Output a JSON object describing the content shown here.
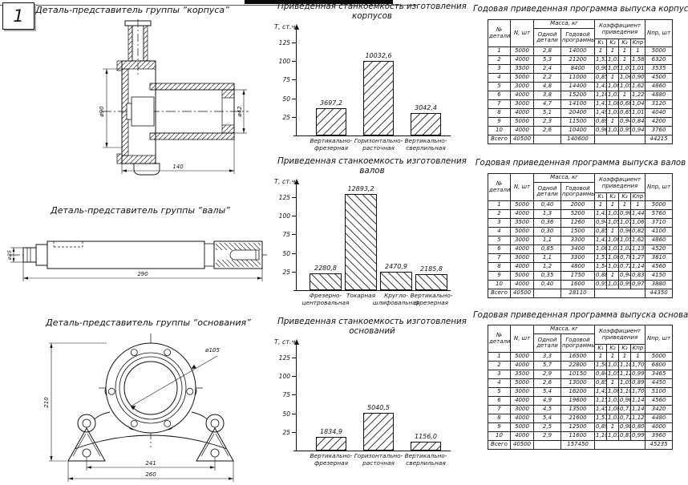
{
  "page": {
    "number": "1"
  },
  "drawings": [
    {
      "title": "Деталь-представитель группы “корпуса”",
      "dim_left": "ø90",
      "dim_right": "ø42",
      "dim_bottom": "140"
    },
    {
      "title": "Деталь-представитель группы “валы”",
      "dim_left": "ø25",
      "dim_bottom": "290"
    },
    {
      "title": "Деталь-представитель группы “основания”",
      "dim_diameter": "ø105",
      "dim_left": "210",
      "dim_bottom_inner": "241",
      "dim_bottom_outer": "260"
    }
  ],
  "chart_data": [
    {
      "type": "bar",
      "title_line1": "Приведенная станкоемкость изготовления",
      "title_line2": "корпусов",
      "ylabel": "Т, ст.ч.",
      "yticks": [
        25,
        50,
        75,
        100,
        125
      ],
      "ylim": [
        0,
        140
      ],
      "value_scale": 100,
      "hatch": "fwd",
      "grid": false,
      "categories": [
        [
          "Вертикально-",
          "фрезерная"
        ],
        [
          "Горизонтально-",
          "расточная"
        ],
        [
          "Вертикально-",
          "сверлильная"
        ]
      ],
      "values": [
        3697.2,
        10032.6,
        3042.4
      ],
      "labels": [
        "3697,2",
        "10032,6",
        "3042,4"
      ]
    },
    {
      "type": "bar",
      "title_line1": "Приведенная станкоемкость изготовления",
      "title_line2": "валов",
      "ylabel": "Т, ст.ч.",
      "yticks": [
        25,
        50,
        75,
        100,
        125
      ],
      "ylim": [
        0,
        140
      ],
      "value_scale": 100,
      "hatch": "back",
      "grid": false,
      "categories": [
        [
          "Фрезерно-",
          "центровальная"
        ],
        [
          "Токарная",
          ""
        ],
        [
          "Кругло-",
          "шлифовальная"
        ],
        [
          "Вертикально-",
          "фрезерная"
        ]
      ],
      "values": [
        2280.8,
        12893.2,
        2470.9,
        2185.8
      ],
      "labels": [
        "2280,8",
        "12893,2",
        "2470,9",
        "2185,8"
      ]
    },
    {
      "type": "bar",
      "title_line1": "Приведенная станкоемкость изготовления",
      "title_line2": "оснований",
      "ylabel": "Т, ст.ч.",
      "yticks": [
        25,
        50,
        75,
        100,
        125
      ],
      "ylim": [
        0,
        140
      ],
      "value_scale": 100,
      "hatch": "fwd",
      "grid": false,
      "categories": [
        [
          "Вертикально-",
          "фрезерная"
        ],
        [
          "Горизонтально-",
          "расточная"
        ],
        [
          "Вертикально-",
          "сверлильная"
        ]
      ],
      "values": [
        1834.9,
        5040.5,
        1156.0
      ],
      "labels": [
        "1834,9",
        "5040,5",
        "1156,0"
      ]
    }
  ],
  "tables": {
    "headers": {
      "detail": "№ детали",
      "n": "N, шт",
      "mass": "Масса, кг",
      "mass_one": "Одной детали",
      "mass_year": "Годовой программы",
      "coef": "Коэффициент приведения",
      "k1": "K₁",
      "k2": "K₂",
      "k3": "K₃",
      "kpr": "Kпр",
      "npr": "Nпр, шт"
    },
    "list": [
      {
        "title": "Годовая приведенная программа выпуска корпусов",
        "rows": [
          [
            "1",
            "5000",
            "2,8",
            "14000",
            "1",
            "1",
            "1",
            "1",
            "5000"
          ],
          [
            "2",
            "4000",
            "5,3",
            "21200",
            "1,53",
            "1,03",
            "1",
            "1,58",
            "6320"
          ],
          [
            "3",
            "3500",
            "2,4",
            "8400",
            "0,90",
            "1,05",
            "1,07",
            "1,01",
            "3535"
          ],
          [
            "4",
            "5000",
            "2,2",
            "11000",
            "0,85",
            "1",
            "1,06",
            "0,90",
            "4500"
          ],
          [
            "5",
            "3000",
            "4,8",
            "14400",
            "1,43",
            "1,08",
            "1,05",
            "1,62",
            "4860"
          ],
          [
            "6",
            "4000",
            "3,8",
            "15200",
            "1,18",
            "1,03",
            "1",
            "1,22",
            "4880"
          ],
          [
            "7",
            "3000",
            "4,7",
            "14100",
            "1,41",
            "1,08",
            "0,68",
            "1,04",
            "3120"
          ],
          [
            "8",
            "4000",
            "5,1",
            "20400",
            "1,49",
            "1,03",
            "0,65",
            "1,01",
            "4040"
          ],
          [
            "9",
            "5000",
            "2,3",
            "11500",
            "0,89",
            "1",
            "0,94",
            "0,84",
            "4200"
          ],
          [
            "10",
            "4000",
            "2,6",
            "10400",
            "0,96",
            "1,03",
            "0,95",
            "0,94",
            "3760"
          ]
        ],
        "total": [
          "Всего",
          "40500",
          "",
          "140600",
          "",
          "44215"
        ]
      },
      {
        "title": "Годовая приведенная программа выпуска валов",
        "rows": [
          [
            "1",
            "5000",
            "0,40",
            "2000",
            "1",
            "1",
            "1",
            "1",
            "5000"
          ],
          [
            "2",
            "4000",
            "1,3",
            "5200",
            "1,43",
            "1,03",
            "0,98",
            "1,44",
            "5760"
          ],
          [
            "3",
            "3500",
            "0,36",
            "1260",
            "0,94",
            "1,05",
            "1,07",
            "1,06",
            "3710"
          ],
          [
            "4",
            "5000",
            "0,30",
            "1500",
            "0,85",
            "1",
            "0,96",
            "0,82",
            "4100"
          ],
          [
            "5",
            "3000",
            "1,1",
            "3300",
            "1,43",
            "1,08",
            "1,05",
            "1,62",
            "4860"
          ],
          [
            "6",
            "4000",
            "0,85",
            "3400",
            "1,08",
            "1,03",
            "1,02",
            "1,13",
            "4520"
          ],
          [
            "7",
            "3000",
            "1,1",
            "3300",
            "1,51",
            "1,08",
            "0,78",
            "1,27",
            "3810"
          ],
          [
            "8",
            "4000",
            "1,2",
            "4800",
            "1,54",
            "1,03",
            "0,72",
            "1,14",
            "4560"
          ],
          [
            "9",
            "5000",
            "0,35",
            "1750",
            "0,88",
            "1",
            "0,94",
            "0,83",
            "4150"
          ],
          [
            "10",
            "4000",
            "0,40",
            "1600",
            "0,95",
            "1,03",
            "0,99",
            "0,97",
            "3880"
          ]
        ],
        "total": [
          "Всего",
          "40500",
          "",
          "28110",
          "",
          "44350"
        ]
      },
      {
        "title": "Годовая приведенная программа выпуска оснований",
        "rows": [
          [
            "1",
            "5000",
            "3,3",
            "16500",
            "1",
            "1",
            "1",
            "1",
            "5000"
          ],
          [
            "2",
            "4000",
            "5,7",
            "22800",
            "1,50",
            "1,03",
            "1,10",
            "1,70",
            "6800"
          ],
          [
            "3",
            "3500",
            "2,9",
            "10150",
            "0,84",
            "1,05",
            "1,12",
            "0,99",
            "3465"
          ],
          [
            "4",
            "5000",
            "2,6",
            "13000",
            "0,85",
            "1",
            "1,05",
            "0,89",
            "4450"
          ],
          [
            "5",
            "3000",
            "5,4",
            "16200",
            "1,43",
            "1,08",
            "1,10",
            "1,70",
            "5100"
          ],
          [
            "6",
            "4000",
            "4,9",
            "19600",
            "1,15",
            "1,03",
            "0,96",
            "1,14",
            "4560"
          ],
          [
            "7",
            "3000",
            "4,5",
            "13500",
            "1,45",
            "1,08",
            "0,73",
            "1,14",
            "3420"
          ],
          [
            "8",
            "4000",
            "5,4",
            "21600",
            "1,51",
            "1,03",
            "0,72",
            "1,12",
            "4480"
          ],
          [
            "9",
            "5000",
            "2,5",
            "12500",
            "0,89",
            "1",
            "0,90",
            "0,80",
            "4000"
          ],
          [
            "10",
            "4000",
            "2,9",
            "11600",
            "1,10",
            "1,03",
            "0,87",
            "0,99",
            "3960"
          ]
        ],
        "total": [
          "Всего",
          "40500",
          "",
          "157450",
          "",
          "45235"
        ]
      }
    ]
  }
}
